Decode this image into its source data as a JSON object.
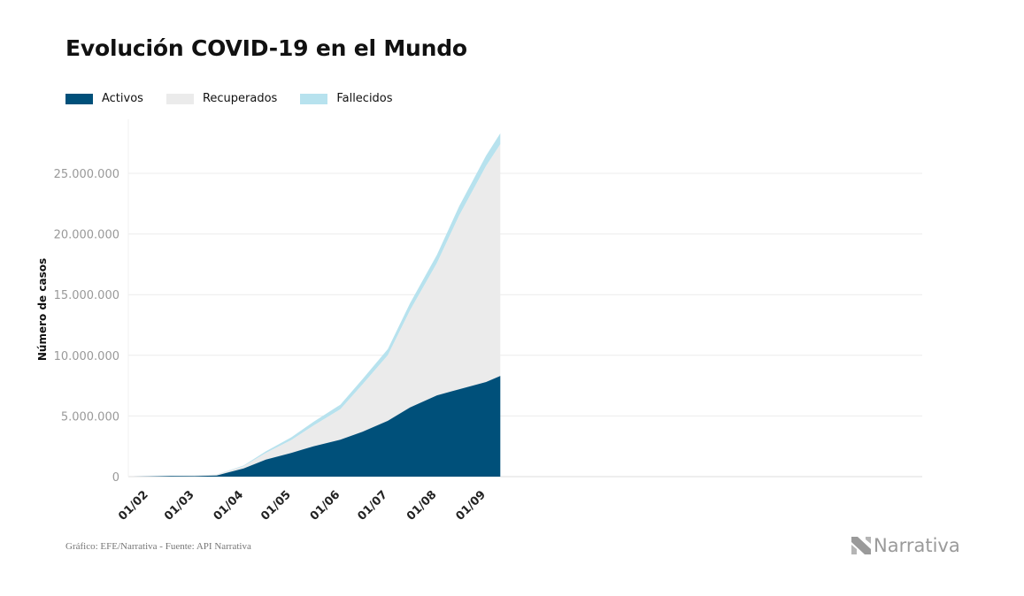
{
  "title": "Evolución COVID-19 en el Mundo",
  "legend": [
    {
      "label": "Activos",
      "color": "#00507a"
    },
    {
      "label": "Recuperados",
      "color": "#ebebeb"
    },
    {
      "label": "Fallecidos",
      "color": "#b7e2ee"
    }
  ],
  "source": "Gráfico: EFE/Narrativa - Fuente: API Narrativa",
  "logo_text": "Narrativa",
  "chart_data": {
    "type": "area",
    "stacked": true,
    "ylabel": "Número de casos",
    "ylim": [
      0,
      28500000
    ],
    "yticks": [
      0,
      5000000,
      10000000,
      15000000,
      20000000,
      25000000
    ],
    "ytick_labels": [
      "0",
      "5.000.000",
      "10.000.000",
      "15.000.000",
      "20.000.000",
      "25.000.000"
    ],
    "xticks": [
      "01/02",
      "01/03",
      "01/04",
      "01/05",
      "01/06",
      "01/07",
      "01/08",
      "01/09"
    ],
    "x": [
      "22/01",
      "01/02",
      "15/02",
      "01/03",
      "15/03",
      "01/04",
      "15/04",
      "01/05",
      "15/05",
      "01/06",
      "15/06",
      "01/07",
      "15/07",
      "01/08",
      "15/08",
      "01/09",
      "10/09"
    ],
    "series": [
      {
        "name": "Activos",
        "values": [
          600,
          12000,
          57000,
          44000,
          96000,
          680000,
          1400000,
          1950000,
          2500000,
          3050000,
          3700000,
          4600000,
          5700000,
          6700000,
          7200000,
          7800000,
          8300000
        ]
      },
      {
        "name": "Recuperados",
        "values": [
          30,
          300,
          10000,
          43000,
          77000,
          190000,
          550000,
          1050000,
          1700000,
          2500000,
          3900000,
          5400000,
          8000000,
          10900000,
          14300000,
          17800000,
          19100000
        ]
      },
      {
        "name": "Fallecidos",
        "values": [
          17,
          260,
          1660,
          2990,
          6500,
          46000,
          136000,
          235000,
          310000,
          376000,
          440000,
          515000,
          590000,
          685000,
          775000,
          855000,
          905000
        ]
      }
    ]
  }
}
